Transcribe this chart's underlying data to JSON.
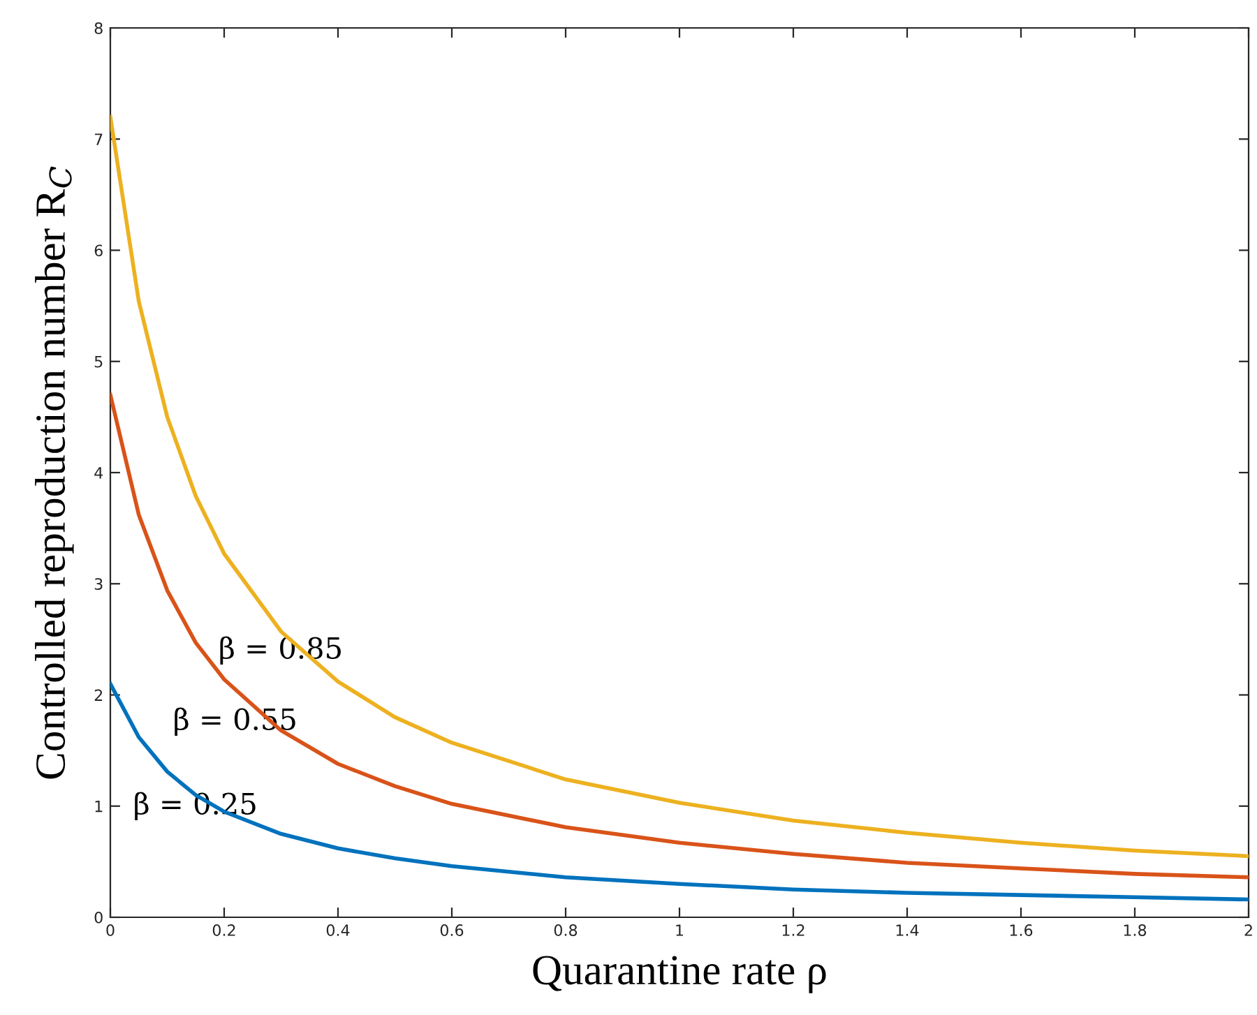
{
  "chart_data": {
    "type": "line",
    "xlabel": "Quarantine rate ρ",
    "ylabel": "Controlled reproduction number R$_{C}$",
    "x": [
      0,
      0.05,
      0.1,
      0.15,
      0.2,
      0.3,
      0.4,
      0.5,
      0.6,
      0.8,
      1,
      1.2,
      1.4,
      1.6,
      1.8,
      2
    ],
    "series": [
      {
        "color": "#edb120",
        "values": [
          7.2,
          5.54,
          4.5,
          3.79,
          3.27,
          2.57,
          2.12,
          1.8,
          1.57,
          1.24,
          1.03,
          0.87,
          0.76,
          0.67,
          0.6,
          0.55
        ]
      },
      {
        "color": "#d95319",
        "values": [
          4.7,
          3.62,
          2.94,
          2.47,
          2.14,
          1.68,
          1.38,
          1.18,
          1.02,
          0.81,
          0.67,
          0.57,
          0.49,
          0.44,
          0.39,
          0.36
        ]
      },
      {
        "color": "#0072bd",
        "values": [
          2.1,
          1.62,
          1.31,
          1.1,
          0.95,
          0.75,
          0.62,
          0.53,
          0.46,
          0.36,
          0.3,
          0.25,
          0.22,
          0.2,
          0.18,
          0.16
        ]
      }
    ],
    "annotations": [
      "β = 0.85",
      "β = 0.55",
      "β = 0.25"
    ],
    "xlim": [
      0,
      2
    ],
    "ylim": [
      0,
      8
    ],
    "xticks": [
      0,
      0.2,
      0.4,
      0.6,
      0.8,
      1,
      1.2,
      1.4,
      1.6,
      1.8,
      2
    ],
    "yticks": [
      0,
      1,
      2,
      3,
      4,
      5,
      6,
      7,
      8
    ],
    "grid": false,
    "legend": false,
    "marker": "none",
    "line_style": "solid"
  }
}
